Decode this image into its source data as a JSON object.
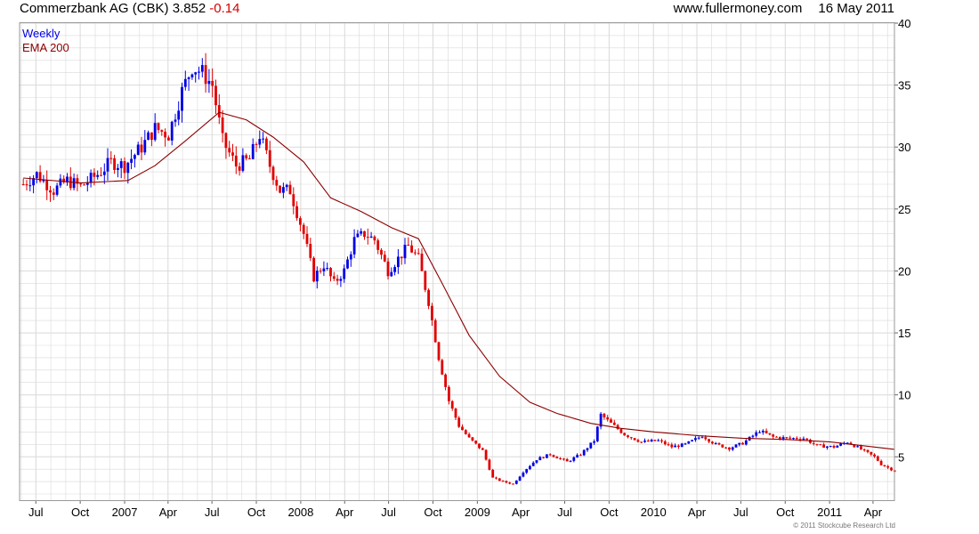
{
  "header": {
    "symbol": "Commerzbank AG (CBK) 3.852",
    "change": "-0.14",
    "site": "www.fullermoney.com",
    "date": "16 May 2011"
  },
  "footer": {
    "copyright": "© 2011 Stockcube Research Ltd"
  },
  "colors": {
    "up": "#0000e6",
    "down": "#e00000",
    "ema": "#8b0000",
    "grid": "#d9d9d9"
  },
  "chart_data": {
    "type": "line",
    "y_axis": {
      "ticks": [
        5,
        10,
        15,
        20,
        25,
        30,
        35,
        40
      ],
      "ylim": [
        1.5,
        40
      ],
      "position": "right"
    },
    "x_axis": {
      "ticks": [
        "Jul",
        "Oct",
        "2007",
        "Apr",
        "Jul",
        "Oct",
        "2008",
        "Apr",
        "Jul",
        "Oct",
        "2009",
        "Apr",
        "Jul",
        "Oct",
        "2010",
        "Apr",
        "Jul",
        "Oct",
        "2011",
        "Apr"
      ]
    },
    "grid": true,
    "legend": {
      "position": "top-left"
    },
    "series": [
      {
        "name": "Weekly",
        "kind": "price",
        "points": [
          [
            "2006-06-05",
            27.0
          ],
          [
            "2006-07-03",
            27.8
          ],
          [
            "2006-08-07",
            26.5
          ],
          [
            "2006-09-04",
            27.3
          ],
          [
            "2006-10-02",
            26.8
          ],
          [
            "2006-11-06",
            27.8
          ],
          [
            "2006-12-04",
            28.8
          ],
          [
            "2007-01-01",
            28.5
          ],
          [
            "2007-02-05",
            30.0
          ],
          [
            "2007-03-05",
            31.5
          ],
          [
            "2007-04-02",
            31.0
          ],
          [
            "2007-04-30",
            34.5
          ],
          [
            "2007-05-21",
            36.5
          ],
          [
            "2007-06-11",
            36.0
          ],
          [
            "2007-07-02",
            35.0
          ],
          [
            "2007-07-23",
            30.5
          ],
          [
            "2007-08-20",
            28.5
          ],
          [
            "2007-09-17",
            29.0
          ],
          [
            "2007-10-08",
            31.0
          ],
          [
            "2007-10-29",
            28.5
          ],
          [
            "2007-11-19",
            26.5
          ],
          [
            "2007-12-10",
            26.5
          ],
          [
            "2008-01-07",
            23.0
          ],
          [
            "2008-01-28",
            19.5
          ],
          [
            "2008-02-18",
            20.5
          ],
          [
            "2008-03-10",
            19.0
          ],
          [
            "2008-03-31",
            20.0
          ],
          [
            "2008-04-21",
            22.5
          ],
          [
            "2008-05-12",
            23.0
          ],
          [
            "2008-06-02",
            22.5
          ],
          [
            "2008-06-30",
            20.0
          ],
          [
            "2008-07-21",
            21.0
          ],
          [
            "2008-08-11",
            22.0
          ],
          [
            "2008-09-01",
            21.0
          ],
          [
            "2008-09-22",
            17.5
          ],
          [
            "2008-10-13",
            13.0
          ],
          [
            "2008-11-03",
            9.5
          ],
          [
            "2008-11-24",
            7.5
          ],
          [
            "2008-12-15",
            6.5
          ],
          [
            "2009-01-12",
            5.5
          ],
          [
            "2009-02-02",
            3.3
          ],
          [
            "2009-02-23",
            3.0
          ],
          [
            "2009-03-16",
            2.8
          ],
          [
            "2009-04-06",
            3.8
          ],
          [
            "2009-05-04",
            4.8
          ],
          [
            "2009-06-01",
            5.2
          ],
          [
            "2009-07-06",
            4.6
          ],
          [
            "2009-08-03",
            5.2
          ],
          [
            "2009-08-31",
            6.3
          ],
          [
            "2009-09-14",
            8.4
          ],
          [
            "2009-10-05",
            7.7
          ],
          [
            "2009-11-02",
            6.8
          ],
          [
            "2009-12-07",
            6.2
          ],
          [
            "2010-01-11",
            6.3
          ],
          [
            "2010-02-08",
            5.8
          ],
          [
            "2010-03-08",
            6.0
          ],
          [
            "2010-04-12",
            6.7
          ],
          [
            "2010-05-10",
            6.0
          ],
          [
            "2010-06-07",
            5.7
          ],
          [
            "2010-07-05",
            6.1
          ],
          [
            "2010-08-09",
            7.1
          ],
          [
            "2010-09-06",
            6.6
          ],
          [
            "2010-10-04",
            6.5
          ],
          [
            "2010-11-08",
            6.5
          ],
          [
            "2010-12-06",
            5.9
          ],
          [
            "2011-01-10",
            5.8
          ],
          [
            "2011-02-07",
            6.2
          ],
          [
            "2011-03-07",
            5.6
          ],
          [
            "2011-04-04",
            5.0
          ],
          [
            "2011-04-18",
            4.4
          ],
          [
            "2011-05-16",
            3.852
          ]
        ]
      },
      {
        "name": "EMA 200",
        "kind": "ema",
        "points": [
          [
            "2006-06-05",
            27.5
          ],
          [
            "2006-10-02",
            27.1
          ],
          [
            "2007-01-08",
            27.3
          ],
          [
            "2007-03-05",
            28.5
          ],
          [
            "2007-05-07",
            30.5
          ],
          [
            "2007-07-16",
            32.8
          ],
          [
            "2007-09-10",
            32.2
          ],
          [
            "2007-11-05",
            30.8
          ],
          [
            "2008-01-07",
            28.8
          ],
          [
            "2008-03-03",
            25.9
          ],
          [
            "2008-05-05",
            24.8
          ],
          [
            "2008-07-07",
            23.5
          ],
          [
            "2008-09-01",
            22.6
          ],
          [
            "2008-10-20",
            19.0
          ],
          [
            "2008-12-15",
            14.8
          ],
          [
            "2009-02-16",
            11.5
          ],
          [
            "2009-04-20",
            9.4
          ],
          [
            "2009-06-15",
            8.5
          ],
          [
            "2009-08-24",
            7.7
          ],
          [
            "2009-10-26",
            7.3
          ],
          [
            "2010-01-04",
            7.0
          ],
          [
            "2010-04-05",
            6.7
          ],
          [
            "2010-07-05",
            6.5
          ],
          [
            "2010-10-04",
            6.4
          ],
          [
            "2011-01-03",
            6.2
          ],
          [
            "2011-05-16",
            5.6
          ]
        ]
      }
    ]
  }
}
